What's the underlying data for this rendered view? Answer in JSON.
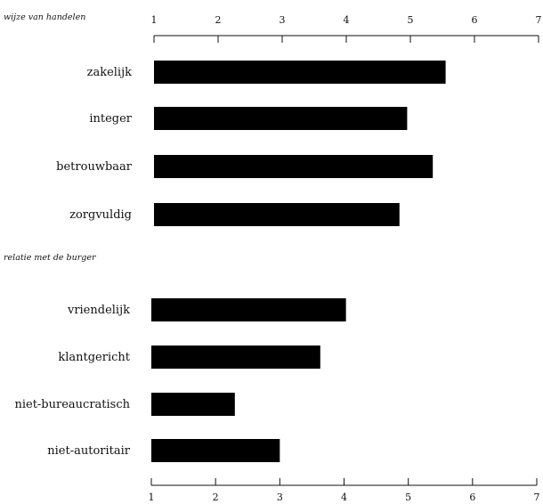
{
  "chart_data": {
    "type": "bar",
    "orientation": "horizontal",
    "xlim": [
      1,
      7
    ],
    "ticks": [
      "1",
      "2",
      "3",
      "4",
      "5",
      "6",
      "7"
    ],
    "groups": [
      {
        "title": "wijze van handelen",
        "categories": [
          "zakelijk",
          "integer",
          "betrouwbaar",
          "zorgvuldig"
        ],
        "values": [
          5.55,
          4.95,
          5.35,
          4.83
        ]
      },
      {
        "title": "relatie met de burger",
        "categories": [
          "vriendelijk",
          "klantgericht",
          "niet-bureaucratisch",
          "niet-autoritair"
        ],
        "values": [
          4.03,
          3.63,
          2.3,
          3.0
        ]
      }
    ]
  }
}
